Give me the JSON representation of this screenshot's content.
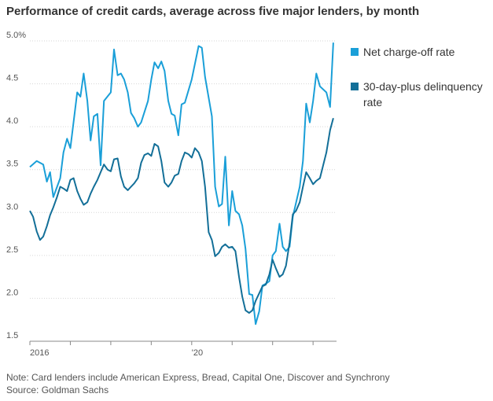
{
  "chart_data": {
    "type": "line",
    "title": "Performance of credit cards, average across five major lenders, by month",
    "xlabel": "",
    "ylabel": "",
    "ylim": [
      1.5,
      5.0
    ],
    "yticks": [
      "1.5",
      "2.0",
      "2.5",
      "3.0",
      "3.5",
      "4.0",
      "4.5",
      "5.0%"
    ],
    "xticks": [
      "2016",
      "'20"
    ],
    "grid": true,
    "legend": "right",
    "series": [
      {
        "name": "Net charge-off rate",
        "color": "#1a9fd8",
        "points": [
          [
            2016.0,
            3.53
          ],
          [
            2016.17,
            3.6
          ],
          [
            2016.33,
            3.56
          ],
          [
            2016.42,
            3.36
          ],
          [
            2016.5,
            3.47
          ],
          [
            2016.58,
            3.18
          ],
          [
            2016.75,
            3.4
          ],
          [
            2016.83,
            3.7
          ],
          [
            2016.92,
            3.86
          ],
          [
            2017.0,
            3.75
          ],
          [
            2017.17,
            4.4
          ],
          [
            2017.25,
            4.35
          ],
          [
            2017.33,
            4.62
          ],
          [
            2017.42,
            4.3
          ],
          [
            2017.5,
            3.84
          ],
          [
            2017.58,
            4.12
          ],
          [
            2017.67,
            4.15
          ],
          [
            2017.75,
            3.55
          ],
          [
            2017.83,
            4.3
          ],
          [
            2018.0,
            4.4
          ],
          [
            2018.08,
            4.9
          ],
          [
            2018.17,
            4.6
          ],
          [
            2018.25,
            4.62
          ],
          [
            2018.33,
            4.55
          ],
          [
            2018.42,
            4.4
          ],
          [
            2018.5,
            4.16
          ],
          [
            2018.58,
            4.1
          ],
          [
            2018.67,
            4.0
          ],
          [
            2018.75,
            4.05
          ],
          [
            2018.92,
            4.3
          ],
          [
            2019.0,
            4.55
          ],
          [
            2019.08,
            4.75
          ],
          [
            2019.17,
            4.68
          ],
          [
            2019.25,
            4.76
          ],
          [
            2019.33,
            4.65
          ],
          [
            2019.42,
            4.3
          ],
          [
            2019.5,
            4.15
          ],
          [
            2019.58,
            4.13
          ],
          [
            2019.67,
            3.9
          ],
          [
            2019.75,
            4.26
          ],
          [
            2019.83,
            4.28
          ],
          [
            2020.0,
            4.55
          ],
          [
            2020.17,
            4.94
          ],
          [
            2020.25,
            4.92
          ],
          [
            2020.33,
            4.58
          ],
          [
            2020.5,
            4.12
          ],
          [
            2020.58,
            3.3
          ],
          [
            2020.67,
            3.07
          ],
          [
            2020.75,
            3.1
          ],
          [
            2020.83,
            3.65
          ],
          [
            2020.92,
            2.85
          ],
          [
            2021.0,
            3.25
          ],
          [
            2021.08,
            3.02
          ],
          [
            2021.17,
            2.98
          ],
          [
            2021.25,
            2.85
          ],
          [
            2021.33,
            2.58
          ],
          [
            2021.42,
            2.05
          ],
          [
            2021.5,
            2.04
          ],
          [
            2021.58,
            1.7
          ],
          [
            2021.67,
            1.85
          ],
          [
            2021.75,
            2.15
          ],
          [
            2021.83,
            2.17
          ],
          [
            2021.92,
            2.2
          ],
          [
            2022.0,
            2.5
          ],
          [
            2022.08,
            2.55
          ],
          [
            2022.17,
            2.87
          ],
          [
            2022.25,
            2.6
          ],
          [
            2022.33,
            2.55
          ],
          [
            2022.42,
            2.6
          ],
          [
            2022.5,
            2.95
          ],
          [
            2022.67,
            3.3
          ],
          [
            2022.75,
            3.6
          ],
          [
            2022.83,
            4.27
          ],
          [
            2022.92,
            4.05
          ],
          [
            2023.0,
            4.3
          ],
          [
            2023.08,
            4.62
          ],
          [
            2023.17,
            4.47
          ],
          [
            2023.33,
            4.4
          ],
          [
            2023.42,
            4.23
          ],
          [
            2023.5,
            4.98
          ]
        ]
      },
      {
        "name": "30-day-plus delinquency rate",
        "color": "#136f98",
        "points": [
          [
            2016.0,
            3.02
          ],
          [
            2016.08,
            2.95
          ],
          [
            2016.17,
            2.78
          ],
          [
            2016.25,
            2.68
          ],
          [
            2016.33,
            2.72
          ],
          [
            2016.42,
            2.84
          ],
          [
            2016.5,
            2.97
          ],
          [
            2016.58,
            3.06
          ],
          [
            2016.67,
            3.18
          ],
          [
            2016.75,
            3.3
          ],
          [
            2016.83,
            3.28
          ],
          [
            2016.92,
            3.25
          ],
          [
            2017.0,
            3.38
          ],
          [
            2017.08,
            3.4
          ],
          [
            2017.17,
            3.25
          ],
          [
            2017.25,
            3.16
          ],
          [
            2017.33,
            3.09
          ],
          [
            2017.42,
            3.12
          ],
          [
            2017.5,
            3.22
          ],
          [
            2017.58,
            3.3
          ],
          [
            2017.67,
            3.38
          ],
          [
            2017.75,
            3.47
          ],
          [
            2017.83,
            3.56
          ],
          [
            2017.92,
            3.5
          ],
          [
            2018.0,
            3.48
          ],
          [
            2018.08,
            3.62
          ],
          [
            2018.17,
            3.63
          ],
          [
            2018.25,
            3.42
          ],
          [
            2018.33,
            3.3
          ],
          [
            2018.42,
            3.26
          ],
          [
            2018.5,
            3.3
          ],
          [
            2018.58,
            3.34
          ],
          [
            2018.67,
            3.4
          ],
          [
            2018.75,
            3.58
          ],
          [
            2018.83,
            3.67
          ],
          [
            2018.92,
            3.69
          ],
          [
            2019.0,
            3.66
          ],
          [
            2019.08,
            3.8
          ],
          [
            2019.17,
            3.77
          ],
          [
            2019.25,
            3.6
          ],
          [
            2019.33,
            3.35
          ],
          [
            2019.42,
            3.3
          ],
          [
            2019.5,
            3.35
          ],
          [
            2019.58,
            3.43
          ],
          [
            2019.67,
            3.45
          ],
          [
            2019.75,
            3.6
          ],
          [
            2019.83,
            3.7
          ],
          [
            2019.92,
            3.68
          ],
          [
            2020.0,
            3.64
          ],
          [
            2020.08,
            3.75
          ],
          [
            2020.17,
            3.7
          ],
          [
            2020.25,
            3.6
          ],
          [
            2020.33,
            3.3
          ],
          [
            2020.42,
            2.77
          ],
          [
            2020.5,
            2.68
          ],
          [
            2020.58,
            2.49
          ],
          [
            2020.67,
            2.53
          ],
          [
            2020.75,
            2.6
          ],
          [
            2020.83,
            2.63
          ],
          [
            2020.92,
            2.59
          ],
          [
            2021.0,
            2.6
          ],
          [
            2021.08,
            2.55
          ],
          [
            2021.17,
            2.25
          ],
          [
            2021.25,
            2.02
          ],
          [
            2021.33,
            1.86
          ],
          [
            2021.42,
            1.83
          ],
          [
            2021.5,
            1.86
          ],
          [
            2021.58,
            1.97
          ],
          [
            2021.67,
            2.06
          ],
          [
            2021.75,
            2.14
          ],
          [
            2021.83,
            2.16
          ],
          [
            2021.92,
            2.28
          ],
          [
            2022.0,
            2.45
          ],
          [
            2022.08,
            2.35
          ],
          [
            2022.17,
            2.25
          ],
          [
            2022.25,
            2.28
          ],
          [
            2022.33,
            2.38
          ],
          [
            2022.42,
            2.65
          ],
          [
            2022.5,
            2.98
          ],
          [
            2022.58,
            3.02
          ],
          [
            2022.67,
            3.12
          ],
          [
            2022.75,
            3.3
          ],
          [
            2022.83,
            3.47
          ],
          [
            2022.92,
            3.4
          ],
          [
            2023.0,
            3.33
          ],
          [
            2023.08,
            3.37
          ],
          [
            2023.17,
            3.4
          ],
          [
            2023.25,
            3.55
          ],
          [
            2023.33,
            3.7
          ],
          [
            2023.42,
            3.96
          ],
          [
            2023.5,
            4.1
          ]
        ]
      }
    ],
    "note": "Note: Card lenders include American Express, Bread, Capital One, Discover and Synchrony",
    "source": "Source: Goldman Sachs"
  }
}
